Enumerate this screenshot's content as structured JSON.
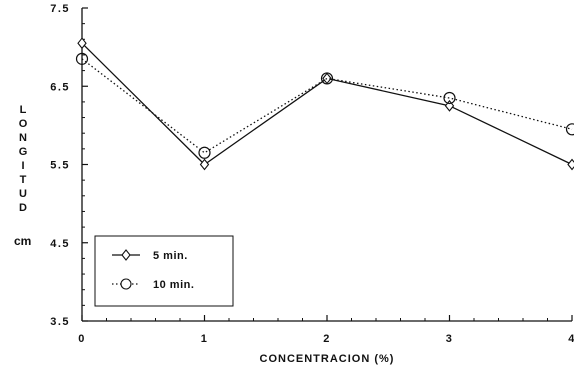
{
  "chart_data": {
    "type": "line",
    "xlabel": "CONCENTRACION (%)",
    "ylabel": "LONGITUD",
    "yunit": "cm",
    "x": [
      0,
      1,
      2,
      3,
      4
    ],
    "xlim": [
      0,
      4
    ],
    "ylim": [
      3.5,
      7.5
    ],
    "xticks": [
      "0",
      "1",
      "2",
      "3",
      "4"
    ],
    "yticks": [
      {
        "value": 3.5,
        "label": "3.5"
      },
      {
        "value": 4.5,
        "label": "4.5"
      },
      {
        "value": 5.5,
        "label": "5.5"
      },
      {
        "value": 6.5,
        "label": "6.5"
      },
      {
        "value": 7.5,
        "label": "7.5"
      }
    ],
    "grid": false,
    "legend_position": "bottom-left",
    "series": [
      {
        "name": "5 min.",
        "marker": "diamond",
        "line": "solid",
        "color": "#111111",
        "values": [
          7.05,
          5.5,
          6.6,
          6.25,
          5.5
        ]
      },
      {
        "name": "10 min.",
        "marker": "circle",
        "line": "dotted",
        "color": "#111111",
        "values": [
          6.85,
          5.65,
          6.6,
          6.35,
          5.95
        ]
      }
    ]
  }
}
